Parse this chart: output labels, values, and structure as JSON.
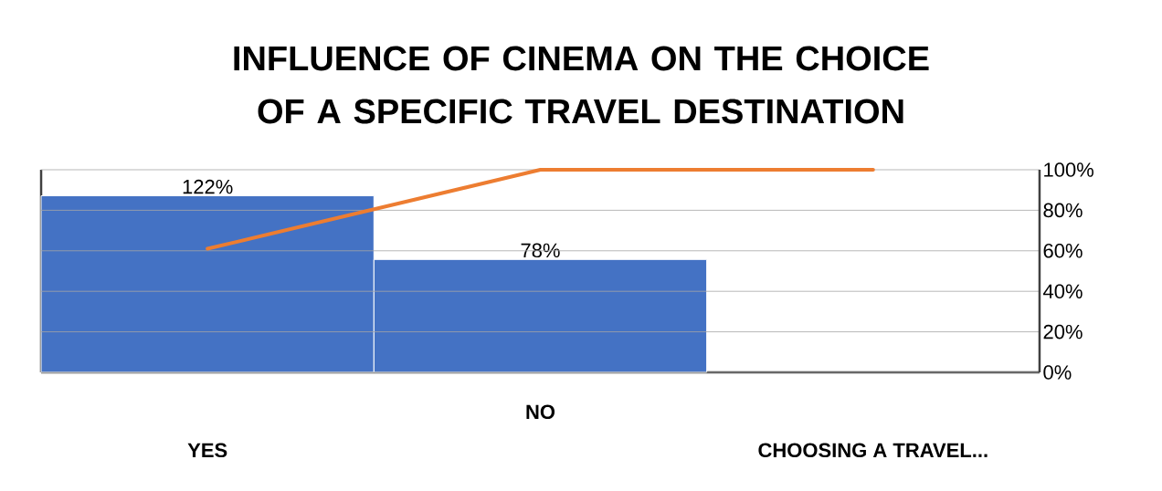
{
  "chart_data": {
    "type": "bar",
    "title": "INFLUENCE OF CINEMA ON THE CHOICE OF A SPECIFIC TRAVEL DESTINATION",
    "categories": [
      "YES",
      "NO",
      "CHOOSING A TRAVEL..."
    ],
    "series": [
      {
        "color": "#4472c4",
        "values": [
          122,
          78,
          null
        ],
        "value_labels": [
          "122%",
          "78%",
          null
        ]
      },
      {
        "type": "line",
        "axis": "y2",
        "color": "#ed7d31",
        "values": [
          61,
          100,
          100
        ]
      }
    ],
    "ylim": [
      0,
      140
    ],
    "y2lim": [
      0,
      100
    ],
    "y2ticks": [
      {
        "value": 0,
        "label": "0%"
      },
      {
        "value": 20,
        "label": "20%"
      },
      {
        "value": 40,
        "label": "40%"
      },
      {
        "value": 60,
        "label": "60%"
      },
      {
        "value": 80,
        "label": "80%"
      },
      {
        "value": 100,
        "label": "100%"
      }
    ],
    "grid": "y"
  }
}
